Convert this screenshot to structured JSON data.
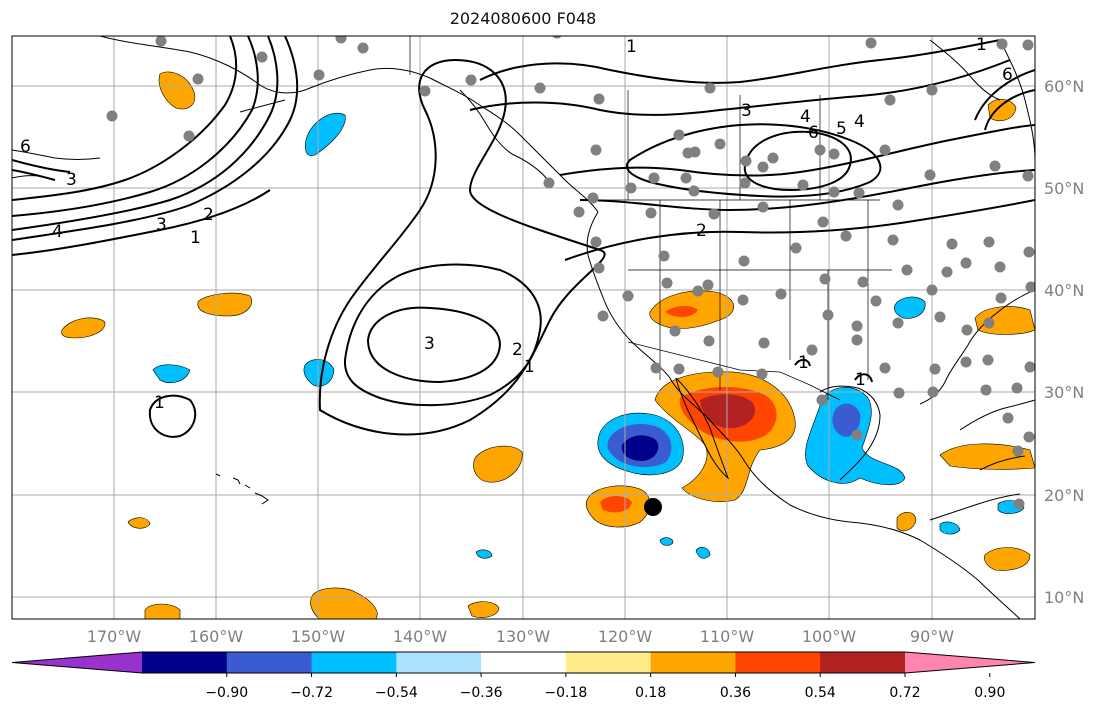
{
  "title": "2024080600 F048",
  "lat_labels": [
    "60°N",
    "50°N",
    "40°N",
    "30°N",
    "20°N",
    "10°N"
  ],
  "lon_labels": [
    "170°W",
    "160°W",
    "150°W",
    "140°W",
    "130°W",
    "120°W",
    "110°W",
    "100°W",
    "90°W"
  ],
  "colorbar": {
    "colors": [
      "#9932cc",
      "#00008b",
      "#3b5bd1",
      "#00bfff",
      "#aee3ff",
      "#ffffff",
      "#ffeb8a",
      "#ffa500",
      "#ff4500",
      "#b22222",
      "#ff85b0"
    ],
    "tick_labels": [
      "−0.90",
      "−0.72",
      "−0.54",
      "−0.36",
      "−0.18",
      "0.18",
      "0.36",
      "0.54",
      "0.72",
      "0.90"
    ]
  },
  "contour_labels": [
    "1",
    "2",
    "3",
    "4",
    "5",
    "6"
  ],
  "colors": {
    "grid": "#aaaaaa",
    "coast": "#000000",
    "station": "#808080",
    "axis_text": "#808080"
  }
}
